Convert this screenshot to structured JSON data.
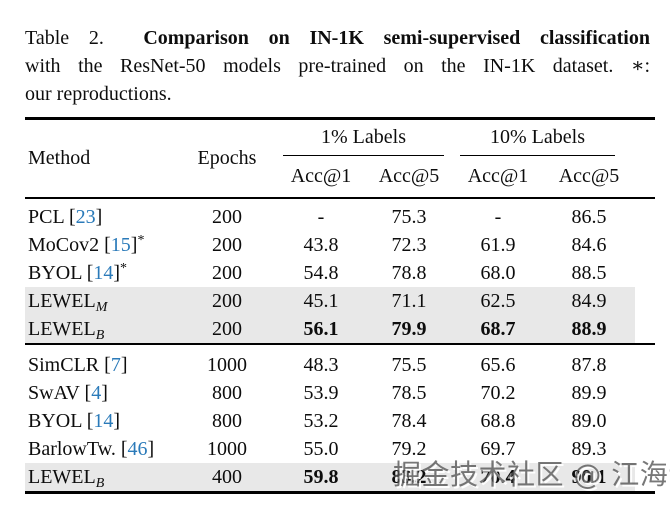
{
  "caption": {
    "label": "Table 2.",
    "title_bold": "Comparison on IN-1K semi-supervised classification",
    "line2": "with the ResNet-50 models pre-trained on the IN-1K dataset. ∗:",
    "line3": "our reproductions."
  },
  "table": {
    "header": {
      "method": "Method",
      "epochs": "Epochs",
      "groups": [
        {
          "label": "1% Labels"
        },
        {
          "label": "10% Labels"
        }
      ],
      "subheaders": [
        "Acc@1",
        "Acc@5",
        "Acc@1",
        "Acc@5"
      ]
    },
    "sections": [
      {
        "rows": [
          {
            "method": "PCL",
            "cite": "23",
            "star": false,
            "sub": "",
            "epochs": "200",
            "values": [
              "-",
              "75.3",
              "-",
              "86.5"
            ],
            "bold_values": false,
            "highlight": false
          },
          {
            "method": "MoCov2",
            "cite": "15",
            "star": true,
            "sub": "",
            "epochs": "200",
            "values": [
              "43.8",
              "72.3",
              "61.9",
              "84.6"
            ],
            "bold_values": false,
            "highlight": false
          },
          {
            "method": "BYOL",
            "cite": "14",
            "star": true,
            "sub": "",
            "epochs": "200",
            "values": [
              "54.8",
              "78.8",
              "68.0",
              "88.5"
            ],
            "bold_values": false,
            "highlight": false
          },
          {
            "method": "LEWEL",
            "cite": "",
            "star": false,
            "sub": "M",
            "epochs": "200",
            "values": [
              "45.1",
              "71.1",
              "62.5",
              "84.9"
            ],
            "bold_values": false,
            "highlight": true
          },
          {
            "method": "LEWEL",
            "cite": "",
            "star": false,
            "sub": "B",
            "epochs": "200",
            "values": [
              "56.1",
              "79.9",
              "68.7",
              "88.9"
            ],
            "bold_values": true,
            "highlight": true
          }
        ]
      },
      {
        "rows": [
          {
            "method": "SimCLR",
            "cite": "7",
            "star": false,
            "sub": "",
            "epochs": "1000",
            "values": [
              "48.3",
              "75.5",
              "65.6",
              "87.8"
            ],
            "bold_values": false,
            "highlight": false
          },
          {
            "method": "SwAV",
            "cite": "4",
            "star": false,
            "sub": "",
            "epochs": "800",
            "values": [
              "53.9",
              "78.5",
              "70.2",
              "89.9"
            ],
            "bold_values": false,
            "highlight": false
          },
          {
            "method": "BYOL",
            "cite": "14",
            "star": false,
            "sub": "",
            "epochs": "800",
            "values": [
              "53.2",
              "78.4",
              "68.8",
              "89.0"
            ],
            "bold_values": false,
            "highlight": false
          },
          {
            "method": "BarlowTw.",
            "cite": "46",
            "star": false,
            "sub": "",
            "epochs": "1000",
            "values": [
              "55.0",
              "79.2",
              "69.7",
              "89.3"
            ],
            "bold_values": false,
            "highlight": false
          },
          {
            "method": "LEWEL",
            "cite": "",
            "star": false,
            "sub": "B",
            "epochs": "400",
            "values": [
              "59.8",
              "83.2",
              "70.4",
              "90.1"
            ],
            "bold_values": true,
            "highlight": true
          }
        ]
      }
    ]
  },
  "watermark": "掘金技术社区 @ 江海士",
  "colors": {
    "citation_blue": "#2a7ab9",
    "highlight_gray": "#e8e8e8",
    "rule_black": "#000000"
  }
}
